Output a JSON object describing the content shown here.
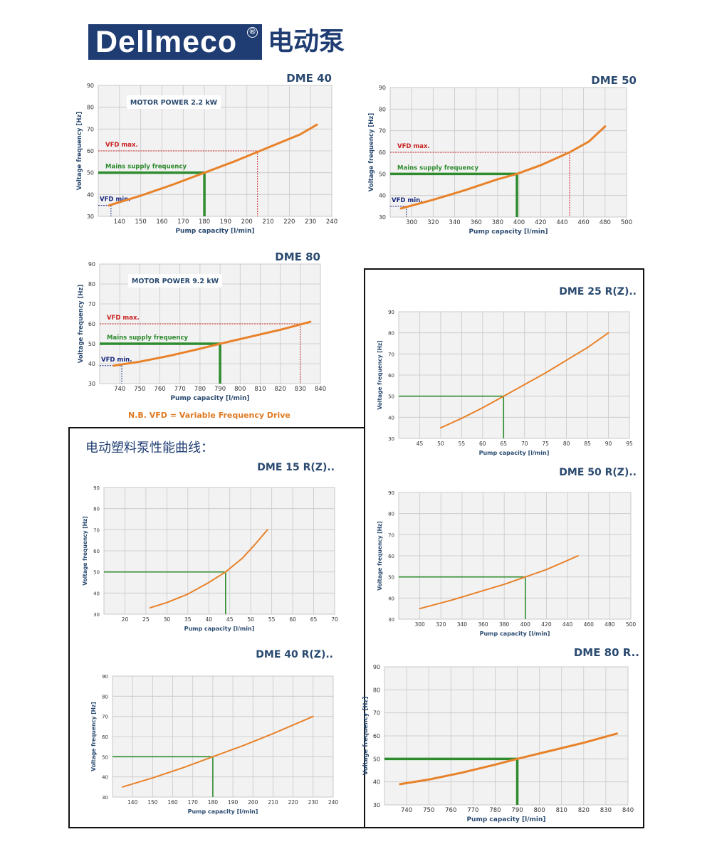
{
  "header": {
    "brand": "Dellmeco",
    "brand_mark": "®",
    "brand_cn": "电动泵"
  },
  "section_heading": "电动塑料泵性能曲线：",
  "note": "N.B. VFD = Variable Frequency Drive",
  "colors": {
    "curve": "#e8822a",
    "mains": "#2e8b2e",
    "vfd_max": "#cc2222",
    "vfd_min": "#1a2a80",
    "grid": "#c8c8c8",
    "bg": "#f2f2f2",
    "brand": "#1f3d73",
    "title": "#2a4a70"
  },
  "chart_data": [
    {
      "type": "line",
      "title": "DME 40",
      "xlabel": "Pump capacity [l/min]",
      "ylabel": "Voltage frequency [Hz]",
      "xlim": [
        130,
        240
      ],
      "ylim": [
        30,
        90
      ],
      "xticks": [
        140,
        150,
        160,
        170,
        180,
        190,
        200,
        210,
        220,
        230,
        240
      ],
      "yticks": [
        30,
        40,
        50,
        60,
        70,
        80,
        90
      ],
      "series": [
        {
          "name": "Curve",
          "x": [
            135,
            150,
            165,
            180,
            195,
            210,
            225,
            233
          ],
          "y": [
            35,
            39.5,
            44.5,
            50,
            55.5,
            61.5,
            67.5,
            72
          ]
        }
      ],
      "mains": {
        "x": 180,
        "y": 50,
        "label": "Mains supply frequency"
      },
      "vfd_max": {
        "x": 205,
        "y": 60,
        "label": "VFD max."
      },
      "vfd_min": {
        "x": 136,
        "y": 35,
        "label": "VFD min."
      },
      "motor_power": "MOTOR POWER 2.2 kW"
    },
    {
      "type": "line",
      "title": "DME 50",
      "xlabel": "Pump capacity [l/min]",
      "ylabel": "Voltage frequency [Hz]",
      "xlim": [
        280,
        500
      ],
      "ylim": [
        30,
        90
      ],
      "xticks": [
        300,
        320,
        340,
        360,
        380,
        400,
        420,
        440,
        460,
        480,
        500
      ],
      "yticks": [
        30,
        40,
        50,
        60,
        70,
        80,
        90
      ],
      "series": [
        {
          "name": "Curve",
          "x": [
            290,
            320,
            350,
            380,
            398,
            420,
            447,
            465,
            480
          ],
          "y": [
            34,
            38,
            42.5,
            47.5,
            50,
            54,
            60,
            65,
            72
          ]
        }
      ],
      "mains": {
        "x": 398,
        "y": 50,
        "label": "Mains supply frequency"
      },
      "vfd_max": {
        "x": 447,
        "y": 60,
        "label": "VFD max."
      },
      "vfd_min": {
        "x": 295,
        "y": 35,
        "label": "VFD min."
      }
    },
    {
      "type": "line",
      "title": "DME 80",
      "xlabel": "Pump capacity [l/min]",
      "ylabel": "Voltage frequency [Hz]",
      "xlim": [
        730,
        840
      ],
      "ylim": [
        30,
        90
      ],
      "xticks": [
        740,
        750,
        760,
        770,
        780,
        790,
        800,
        810,
        820,
        830,
        840
      ],
      "yticks": [
        30,
        40,
        50,
        60,
        70,
        80,
        90
      ],
      "series": [
        {
          "name": "Curve",
          "x": [
            737,
            750,
            765,
            780,
            790,
            805,
            820,
            835
          ],
          "y": [
            39,
            41,
            44,
            47.5,
            50,
            53.5,
            57,
            61
          ]
        }
      ],
      "mains": {
        "x": 790,
        "y": 50,
        "label": "Mains supply frequency"
      },
      "vfd_max": {
        "x": 830,
        "y": 60,
        "label": "VFD max."
      },
      "vfd_min": {
        "x": 741,
        "y": 39,
        "label": "VFD min."
      },
      "motor_power": "MOTOR POWER 9.2 kW"
    },
    {
      "type": "line",
      "title": "DME 25 R(Z)..",
      "xlabel": "Pump capacity [l/min]",
      "ylabel": "Voltage frequency [Hz]",
      "xlim": [
        40,
        95
      ],
      "ylim": [
        30,
        90
      ],
      "xticks": [
        45,
        50,
        55,
        60,
        65,
        70,
        75,
        80,
        85,
        90,
        95
      ],
      "yticks": [
        30,
        40,
        50,
        60,
        70,
        80,
        90
      ],
      "series": [
        {
          "name": "Curve",
          "x": [
            50,
            55,
            60,
            65,
            70,
            75,
            80,
            85,
            90
          ],
          "y": [
            35,
            39.5,
            44.5,
            50,
            55.5,
            61,
            67,
            73,
            80
          ]
        }
      ],
      "mains": {
        "x": 65,
        "y": 50
      }
    },
    {
      "type": "line",
      "title": "DME 15 R(Z)..",
      "xlabel": "Pump capacity [l/min]",
      "ylabel": "Voltage frequency [Hz]",
      "xlim": [
        15,
        70
      ],
      "ylim": [
        30,
        90
      ],
      "xticks": [
        20,
        25,
        30,
        35,
        40,
        45,
        50,
        55,
        60,
        65,
        70
      ],
      "yticks": [
        30,
        40,
        50,
        60,
        70,
        80,
        90
      ],
      "series": [
        {
          "name": "Curve",
          "x": [
            26,
            30,
            35,
            40,
            44,
            48,
            51,
            54
          ],
          "y": [
            33,
            35.5,
            39.5,
            45,
            50,
            56.5,
            63,
            70
          ]
        }
      ],
      "mains": {
        "x": 44,
        "y": 50
      }
    },
    {
      "type": "line",
      "title": "DME 50 R(Z)..",
      "xlabel": "Pump capacity [l/min]",
      "ylabel": "Voltage frequency [Hz]",
      "xlim": [
        280,
        500
      ],
      "ylim": [
        30,
        90
      ],
      "xticks": [
        300,
        320,
        340,
        360,
        380,
        400,
        420,
        440,
        460,
        480,
        500
      ],
      "yticks": [
        30,
        40,
        50,
        60,
        70,
        80,
        90
      ],
      "series": [
        {
          "name": "Curve",
          "x": [
            300,
            330,
            360,
            380,
            400,
            420,
            450
          ],
          "y": [
            35,
            39,
            43.5,
            46.5,
            50,
            53.5,
            60
          ]
        }
      ],
      "mains": {
        "x": 400,
        "y": 50
      }
    },
    {
      "type": "line",
      "title": "DME 40 R(Z)..",
      "xlabel": "Pump capacity [l/min]",
      "ylabel": "Voltage frequency [Hz]",
      "xlim": [
        130,
        240
      ],
      "ylim": [
        30,
        90
      ],
      "xticks": [
        140,
        150,
        160,
        170,
        180,
        190,
        200,
        210,
        220,
        230,
        240
      ],
      "yticks": [
        30,
        40,
        50,
        60,
        70,
        80,
        90
      ],
      "series": [
        {
          "name": "Curve",
          "x": [
            135,
            150,
            165,
            180,
            195,
            210,
            230
          ],
          "y": [
            35,
            39.5,
            44.5,
            50,
            55.5,
            61.5,
            70
          ]
        }
      ],
      "mains": {
        "x": 180,
        "y": 50
      }
    },
    {
      "type": "line",
      "title": "DME 80 R..",
      "xlabel": "Pump capacity [l/min]",
      "ylabel": "Voltage frequency [Hz]",
      "xlim": [
        730,
        840
      ],
      "ylim": [
        30,
        90
      ],
      "xticks": [
        740,
        750,
        760,
        770,
        780,
        790,
        800,
        810,
        820,
        830,
        840
      ],
      "yticks": [
        30,
        40,
        50,
        60,
        70,
        80,
        90
      ],
      "series": [
        {
          "name": "Curve",
          "x": [
            737,
            750,
            765,
            780,
            790,
            805,
            820,
            835
          ],
          "y": [
            39,
            41,
            44,
            47.5,
            50,
            53.5,
            57,
            61
          ]
        }
      ],
      "mains": {
        "x": 790,
        "y": 50
      }
    }
  ]
}
